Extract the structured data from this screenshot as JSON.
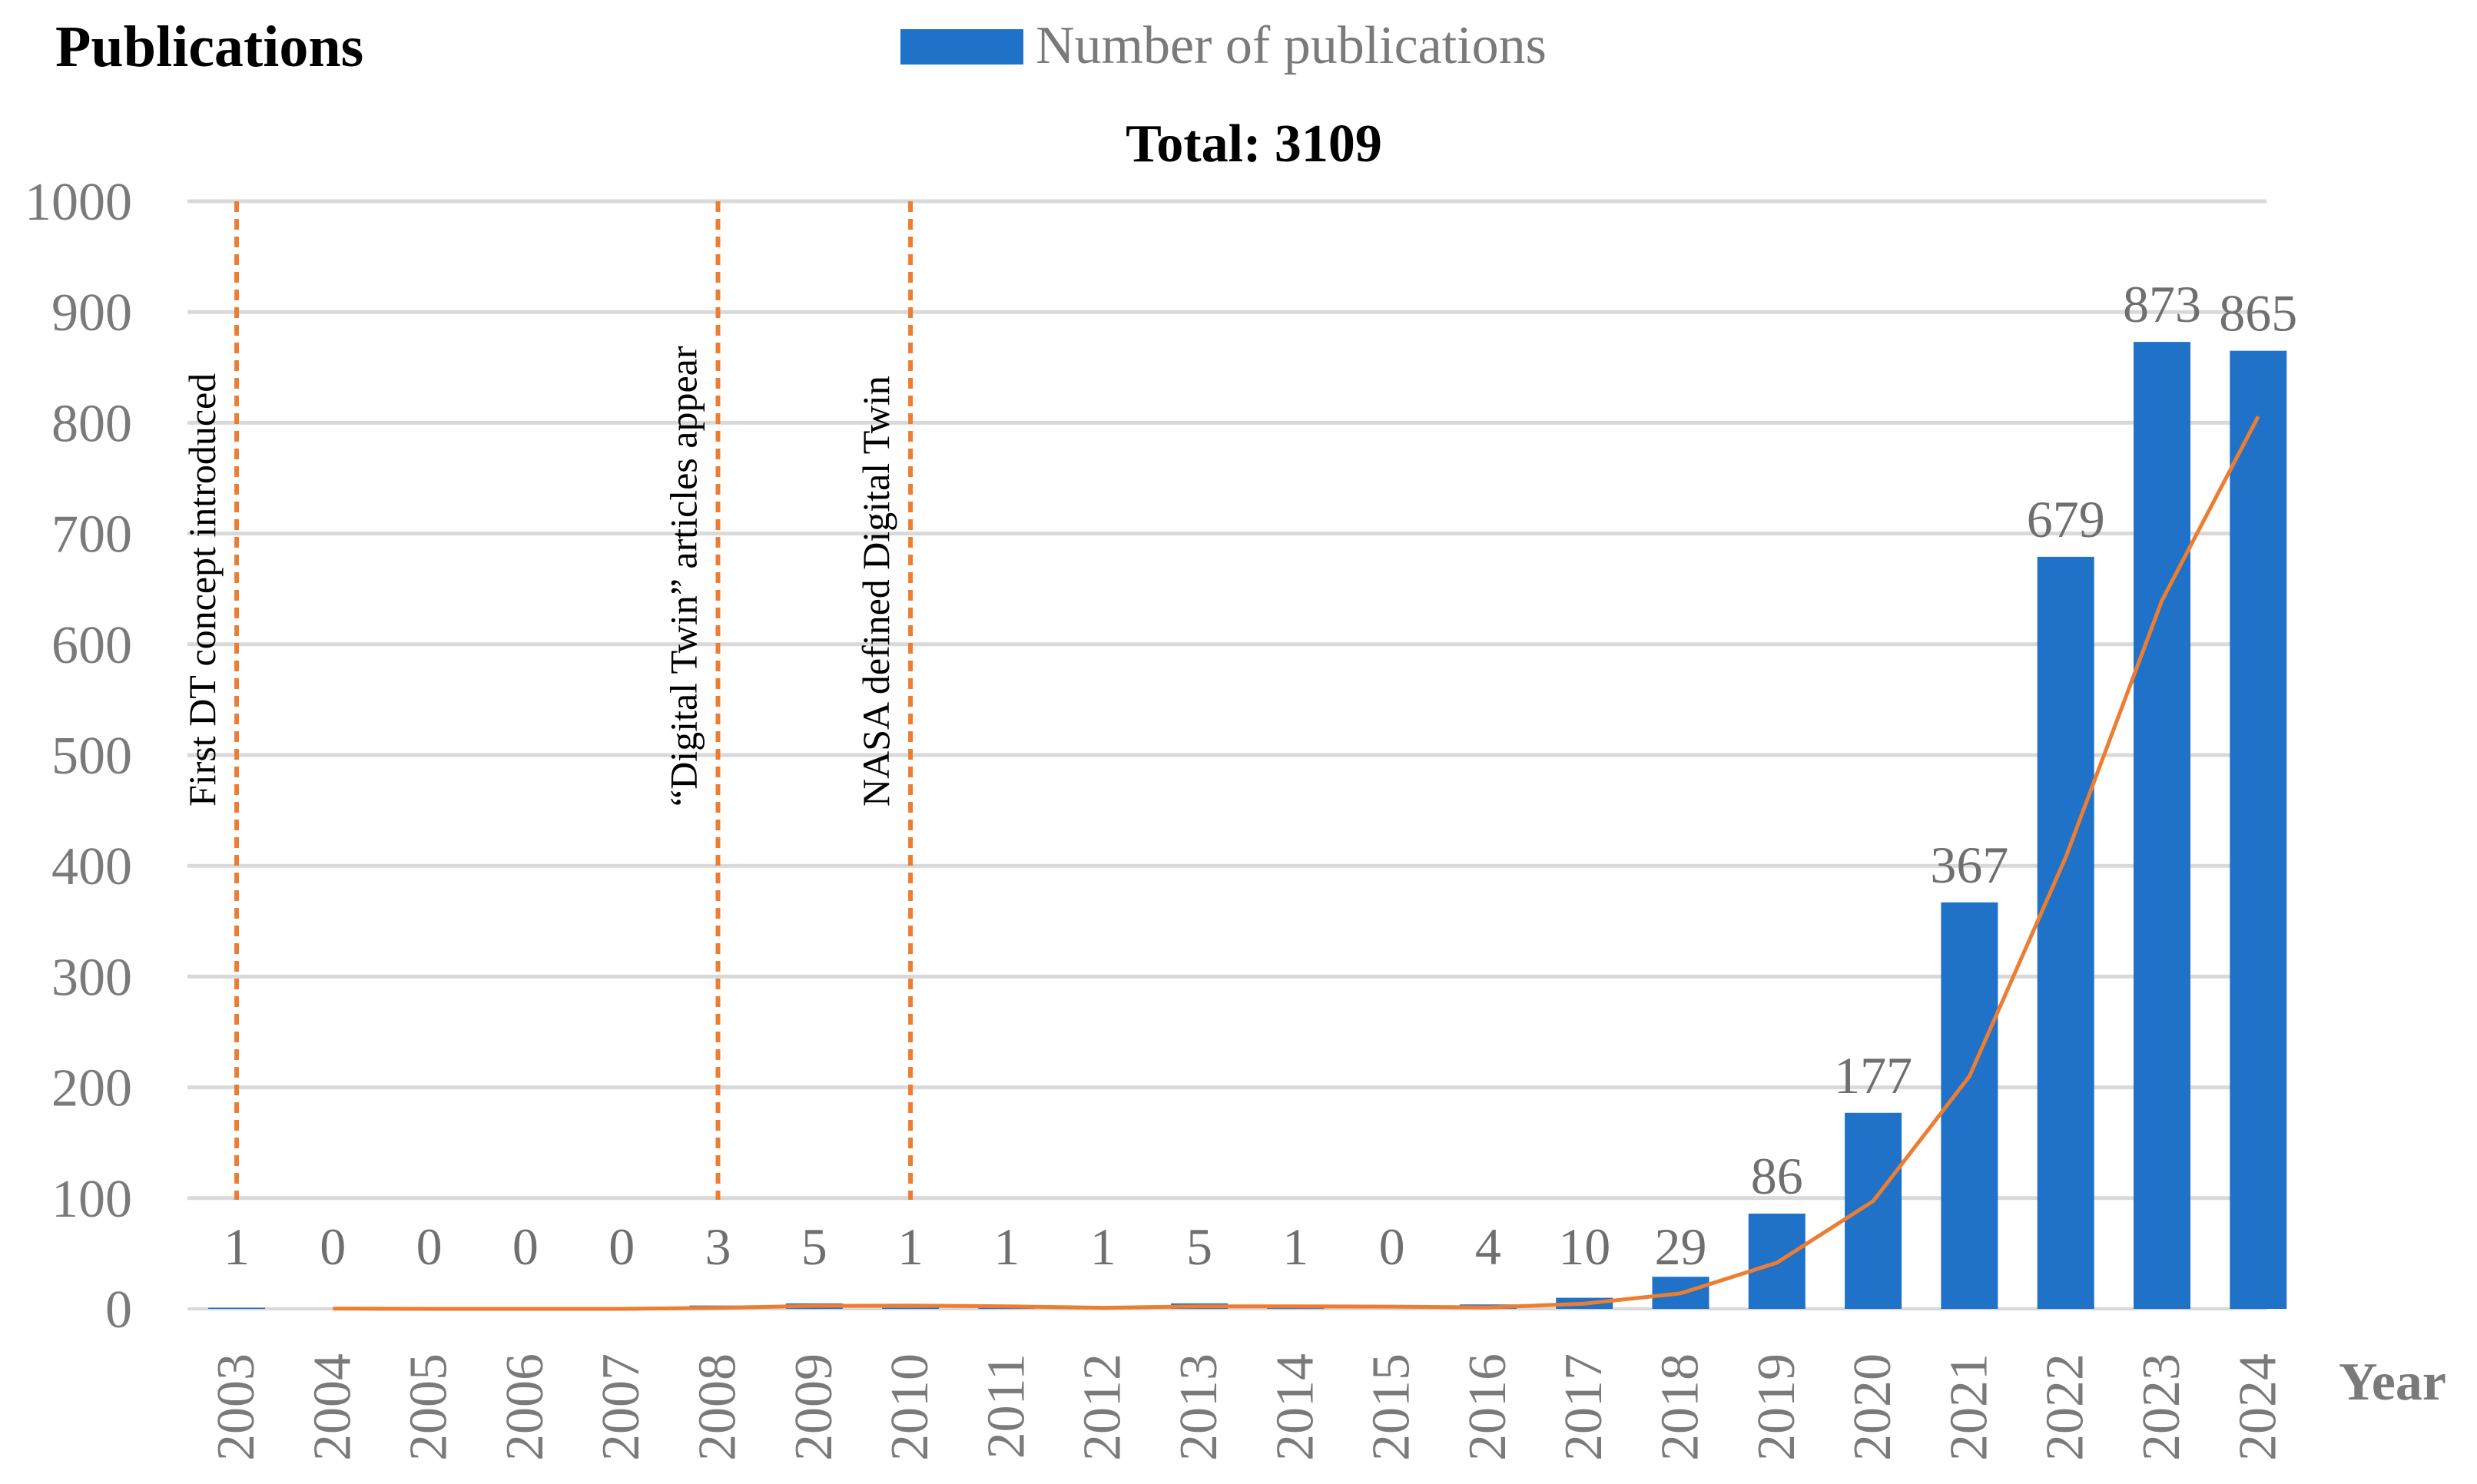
{
  "chart_data": {
    "type": "bar",
    "title": "Total: 3109",
    "ylabel": "Publications",
    "xlabel": "Year",
    "ylim": [
      0,
      1000
    ],
    "yticks": [
      0,
      100,
      200,
      300,
      400,
      500,
      600,
      700,
      800,
      900,
      1000
    ],
    "grid": true,
    "legend_position": "top",
    "categories": [
      "2003",
      "2004",
      "2005",
      "2006",
      "2007",
      "2008",
      "2009",
      "2010",
      "2011",
      "2012",
      "2013",
      "2014",
      "2015",
      "2016",
      "2017",
      "2018",
      "2019",
      "2020",
      "2021",
      "2022",
      "2023",
      "2024"
    ],
    "series": [
      {
        "name": "Number of publications",
        "type": "bar",
        "color": "#1f72c8",
        "values": [
          1,
          0,
          0,
          0,
          0,
          3,
          5,
          1,
          1,
          1,
          5,
          1,
          0,
          4,
          10,
          29,
          86,
          177,
          367,
          679,
          873,
          865
        ]
      },
      {
        "type": "line",
        "color": "#ed7d31",
        "x": [
          "2004",
          "2005",
          "2006",
          "2007",
          "2008",
          "2009",
          "2010",
          "2011",
          "2012",
          "2013",
          "2014",
          "2015",
          "2016",
          "2017",
          "2018",
          "2019",
          "2020",
          "2021",
          "2022",
          "2023",
          "2024"
        ],
        "values": [
          0.3,
          0,
          0,
          0,
          1,
          2.7,
          3,
          2.3,
          1,
          2.3,
          2.3,
          2,
          1.3,
          4.7,
          14,
          41.7,
          97.3,
          210,
          407.7,
          639.7,
          805.7
        ]
      }
    ],
    "annotations": [
      {
        "text": "First DT concept introduced",
        "x": "2003"
      },
      {
        "text": "“Digital Twin” articles appear",
        "x": "2008"
      },
      {
        "text": "NASA defined Digital Twin",
        "x": "2010"
      }
    ],
    "annotation_color": "#ed7d31"
  }
}
